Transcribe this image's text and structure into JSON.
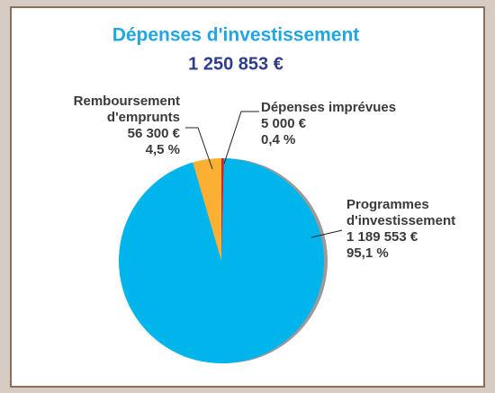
{
  "chart_data": {
    "type": "pie",
    "title": "Dépenses d'investissement",
    "subtitle": "1 250 853 €",
    "categories": [
      "Dépenses imprévues",
      "Programmes d'investissement",
      "Remboursement d'emprunts"
    ],
    "values": [
      5000,
      1189553,
      56300
    ],
    "value_labels": [
      "5 000 €",
      "1 189 553 €",
      "56 300 €"
    ],
    "percentages": [
      0.4,
      95.1,
      4.5
    ],
    "percentage_labels": [
      "0,4 %",
      "95,1 %",
      "4,5 %"
    ],
    "colors": [
      "#d2232a",
      "#00b5ec",
      "#fbb034"
    ]
  }
}
